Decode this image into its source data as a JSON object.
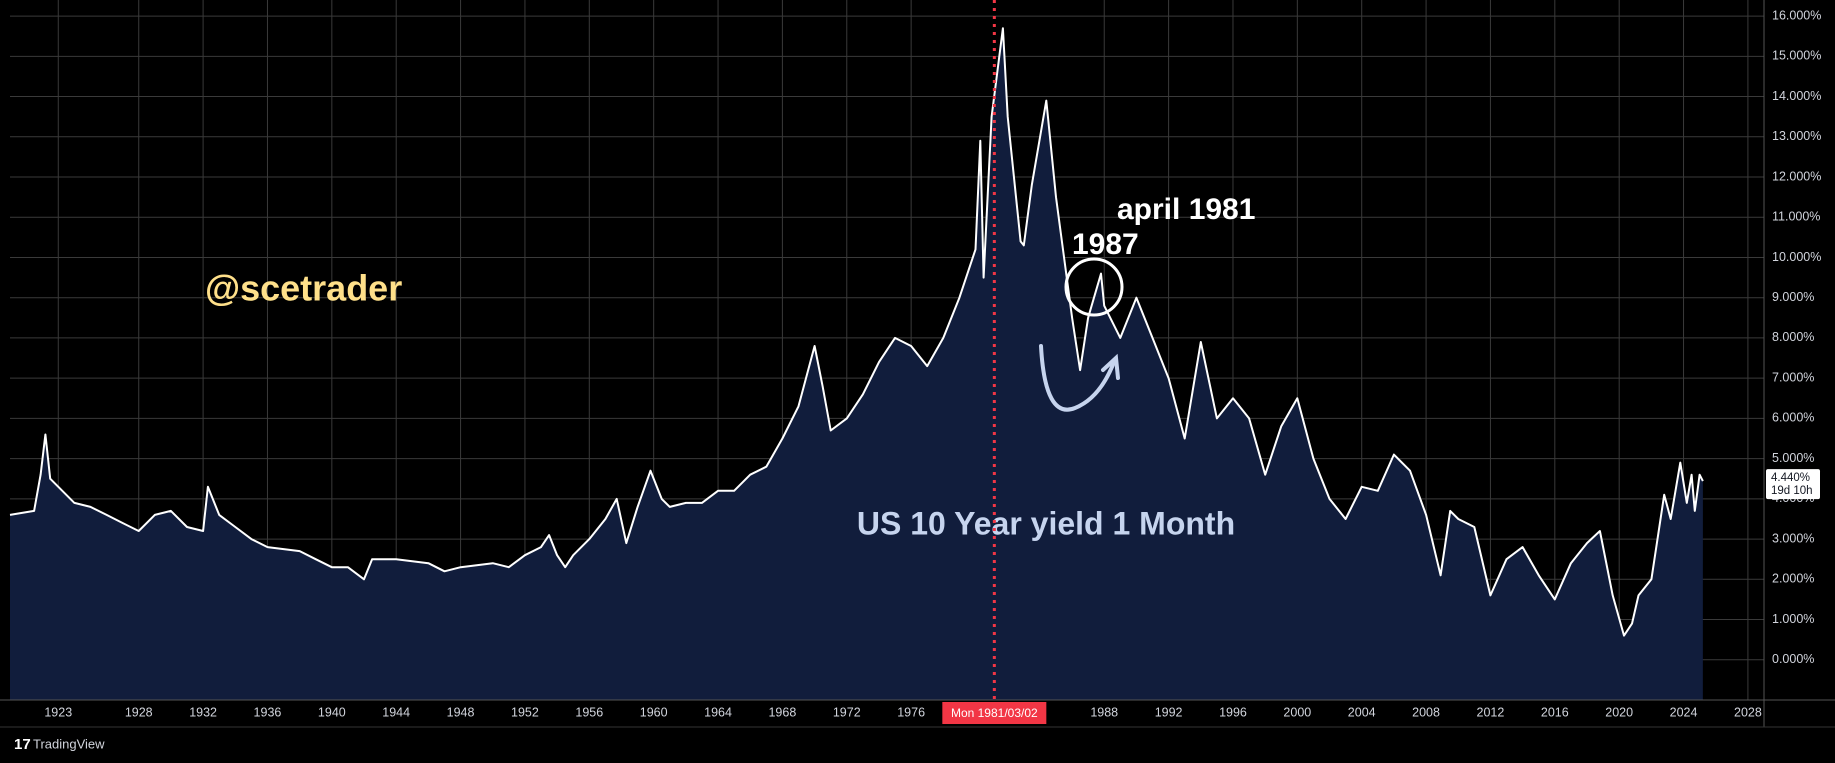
{
  "chart_data": {
    "type": "area",
    "annotations": {
      "watermark": "@scetrader",
      "label_april": "april 1981",
      "label_1987": "1987",
      "caption": "US 10 Year yield 1 Month"
    },
    "x": [
      1920,
      1921.5,
      1921.9,
      1922.2,
      1922.5,
      1923,
      1924,
      1925,
      1926,
      1927,
      1928,
      1929,
      1930,
      1931,
      1932,
      1932.3,
      1933,
      1934,
      1935,
      1936,
      1937,
      1938,
      1939,
      1940,
      1941,
      1942,
      1942.5,
      1944,
      1946,
      1947,
      1948,
      1950,
      1951,
      1952,
      1953,
      1953.5,
      1954,
      1954.5,
      1955,
      1956,
      1957,
      1957.7,
      1958.3,
      1959,
      1959.8,
      1960.5,
      1961,
      1962,
      1963,
      1964,
      1965,
      1966,
      1967,
      1968,
      1969,
      1970,
      1970.5,
      1971,
      1972,
      1973,
      1974,
      1975,
      1976,
      1977,
      1978,
      1979,
      1980,
      1980.3,
      1980.5,
      1981,
      1981.7,
      1982,
      1982.8,
      1983,
      1983.5,
      1984.4,
      1985,
      1986,
      1986.5,
      1987,
      1987.8,
      1988,
      1989,
      1990,
      1991,
      1992,
      1993,
      1994,
      1995,
      1996,
      1997,
      1998,
      1999,
      2000,
      2001,
      2002,
      2003,
      2004,
      2005,
      2006,
      2007,
      2008,
      2008.9,
      2009.5,
      2010,
      2011,
      2012,
      2013,
      2014,
      2015,
      2016,
      2017,
      2018,
      2018.8,
      2019.6,
      2020.3,
      2020.8,
      2021.2,
      2022,
      2022.8,
      2023.2,
      2023.8,
      2024.2,
      2024.5,
      2024.7,
      2025,
      2025.2
    ],
    "values": [
      3.6,
      3.7,
      4.6,
      5.6,
      4.5,
      4.3,
      3.9,
      3.8,
      3.6,
      3.4,
      3.2,
      3.6,
      3.7,
      3.3,
      3.2,
      4.3,
      3.6,
      3.3,
      3.0,
      2.8,
      2.75,
      2.7,
      2.5,
      2.3,
      2.3,
      2.0,
      2.5,
      2.5,
      2.4,
      2.2,
      2.3,
      2.4,
      2.3,
      2.6,
      2.8,
      3.1,
      2.6,
      2.3,
      2.6,
      3.0,
      3.5,
      4.0,
      2.9,
      3.8,
      4.7,
      4.0,
      3.8,
      3.9,
      3.9,
      4.2,
      4.2,
      4.6,
      4.8,
      5.5,
      6.3,
      7.8,
      6.8,
      5.7,
      6.0,
      6.6,
      7.4,
      8.0,
      7.8,
      7.3,
      8.0,
      9.0,
      10.2,
      12.9,
      9.5,
      13.5,
      15.7,
      13.5,
      10.4,
      10.3,
      11.8,
      13.9,
      11.5,
      8.5,
      7.2,
      8.5,
      9.6,
      8.8,
      8.0,
      9.0,
      8.0,
      7.0,
      5.5,
      7.9,
      6.0,
      6.5,
      6.0,
      4.6,
      5.8,
      6.5,
      5.0,
      4.0,
      3.5,
      4.3,
      4.2,
      5.1,
      4.7,
      3.6,
      2.1,
      3.7,
      3.5,
      3.3,
      1.6,
      2.5,
      2.8,
      2.1,
      1.5,
      2.4,
      2.9,
      3.2,
      1.6,
      0.6,
      0.9,
      1.6,
      2.0,
      4.1,
      3.5,
      4.9,
      3.9,
      4.6,
      3.7,
      4.6,
      4.44
    ],
    "color": "#ffffff",
    "fill": "#111d3c",
    "xlim": [
      1920,
      2029
    ],
    "ylim": [
      -1,
      16.4
    ],
    "xticks": [
      1923,
      1928,
      1932,
      1936,
      1940,
      1944,
      1948,
      1952,
      1956,
      1960,
      1964,
      1968,
      1972,
      1976,
      1988,
      1992,
      1996,
      2000,
      2004,
      2008,
      2012,
      2016,
      2020,
      2024,
      2028
    ],
    "yticks": [
      {
        "value": 0,
        "label": "0.000%"
      },
      {
        "value": 1,
        "label": "1.000%"
      },
      {
        "value": 2,
        "label": "2.000%"
      },
      {
        "value": 3,
        "label": "3.000%"
      },
      {
        "value": 4,
        "label": "4.000%"
      },
      {
        "value": 5,
        "label": "5.000%"
      },
      {
        "value": 6,
        "label": "6.000%"
      },
      {
        "value": 7,
        "label": "7.000%"
      },
      {
        "value": 8,
        "label": "8.000%"
      },
      {
        "value": 9,
        "label": "9.000%"
      },
      {
        "value": 10,
        "label": "10.000%"
      },
      {
        "value": 11,
        "label": "11.000%"
      },
      {
        "value": 12,
        "label": "12.000%"
      },
      {
        "value": 13,
        "label": "13.000%"
      },
      {
        "value": 14,
        "label": "14.000%"
      },
      {
        "value": 15,
        "label": "15.000%"
      },
      {
        "value": 16,
        "label": "16.000%"
      }
    ],
    "grid": true,
    "crosshair": {
      "x": 1981.17,
      "label": "Mon 1981/03/02"
    },
    "last_price": {
      "value": 4.44,
      "label": "4.440%",
      "countdown": "19d 10h"
    }
  },
  "footer": {
    "brand": "TradingView"
  }
}
